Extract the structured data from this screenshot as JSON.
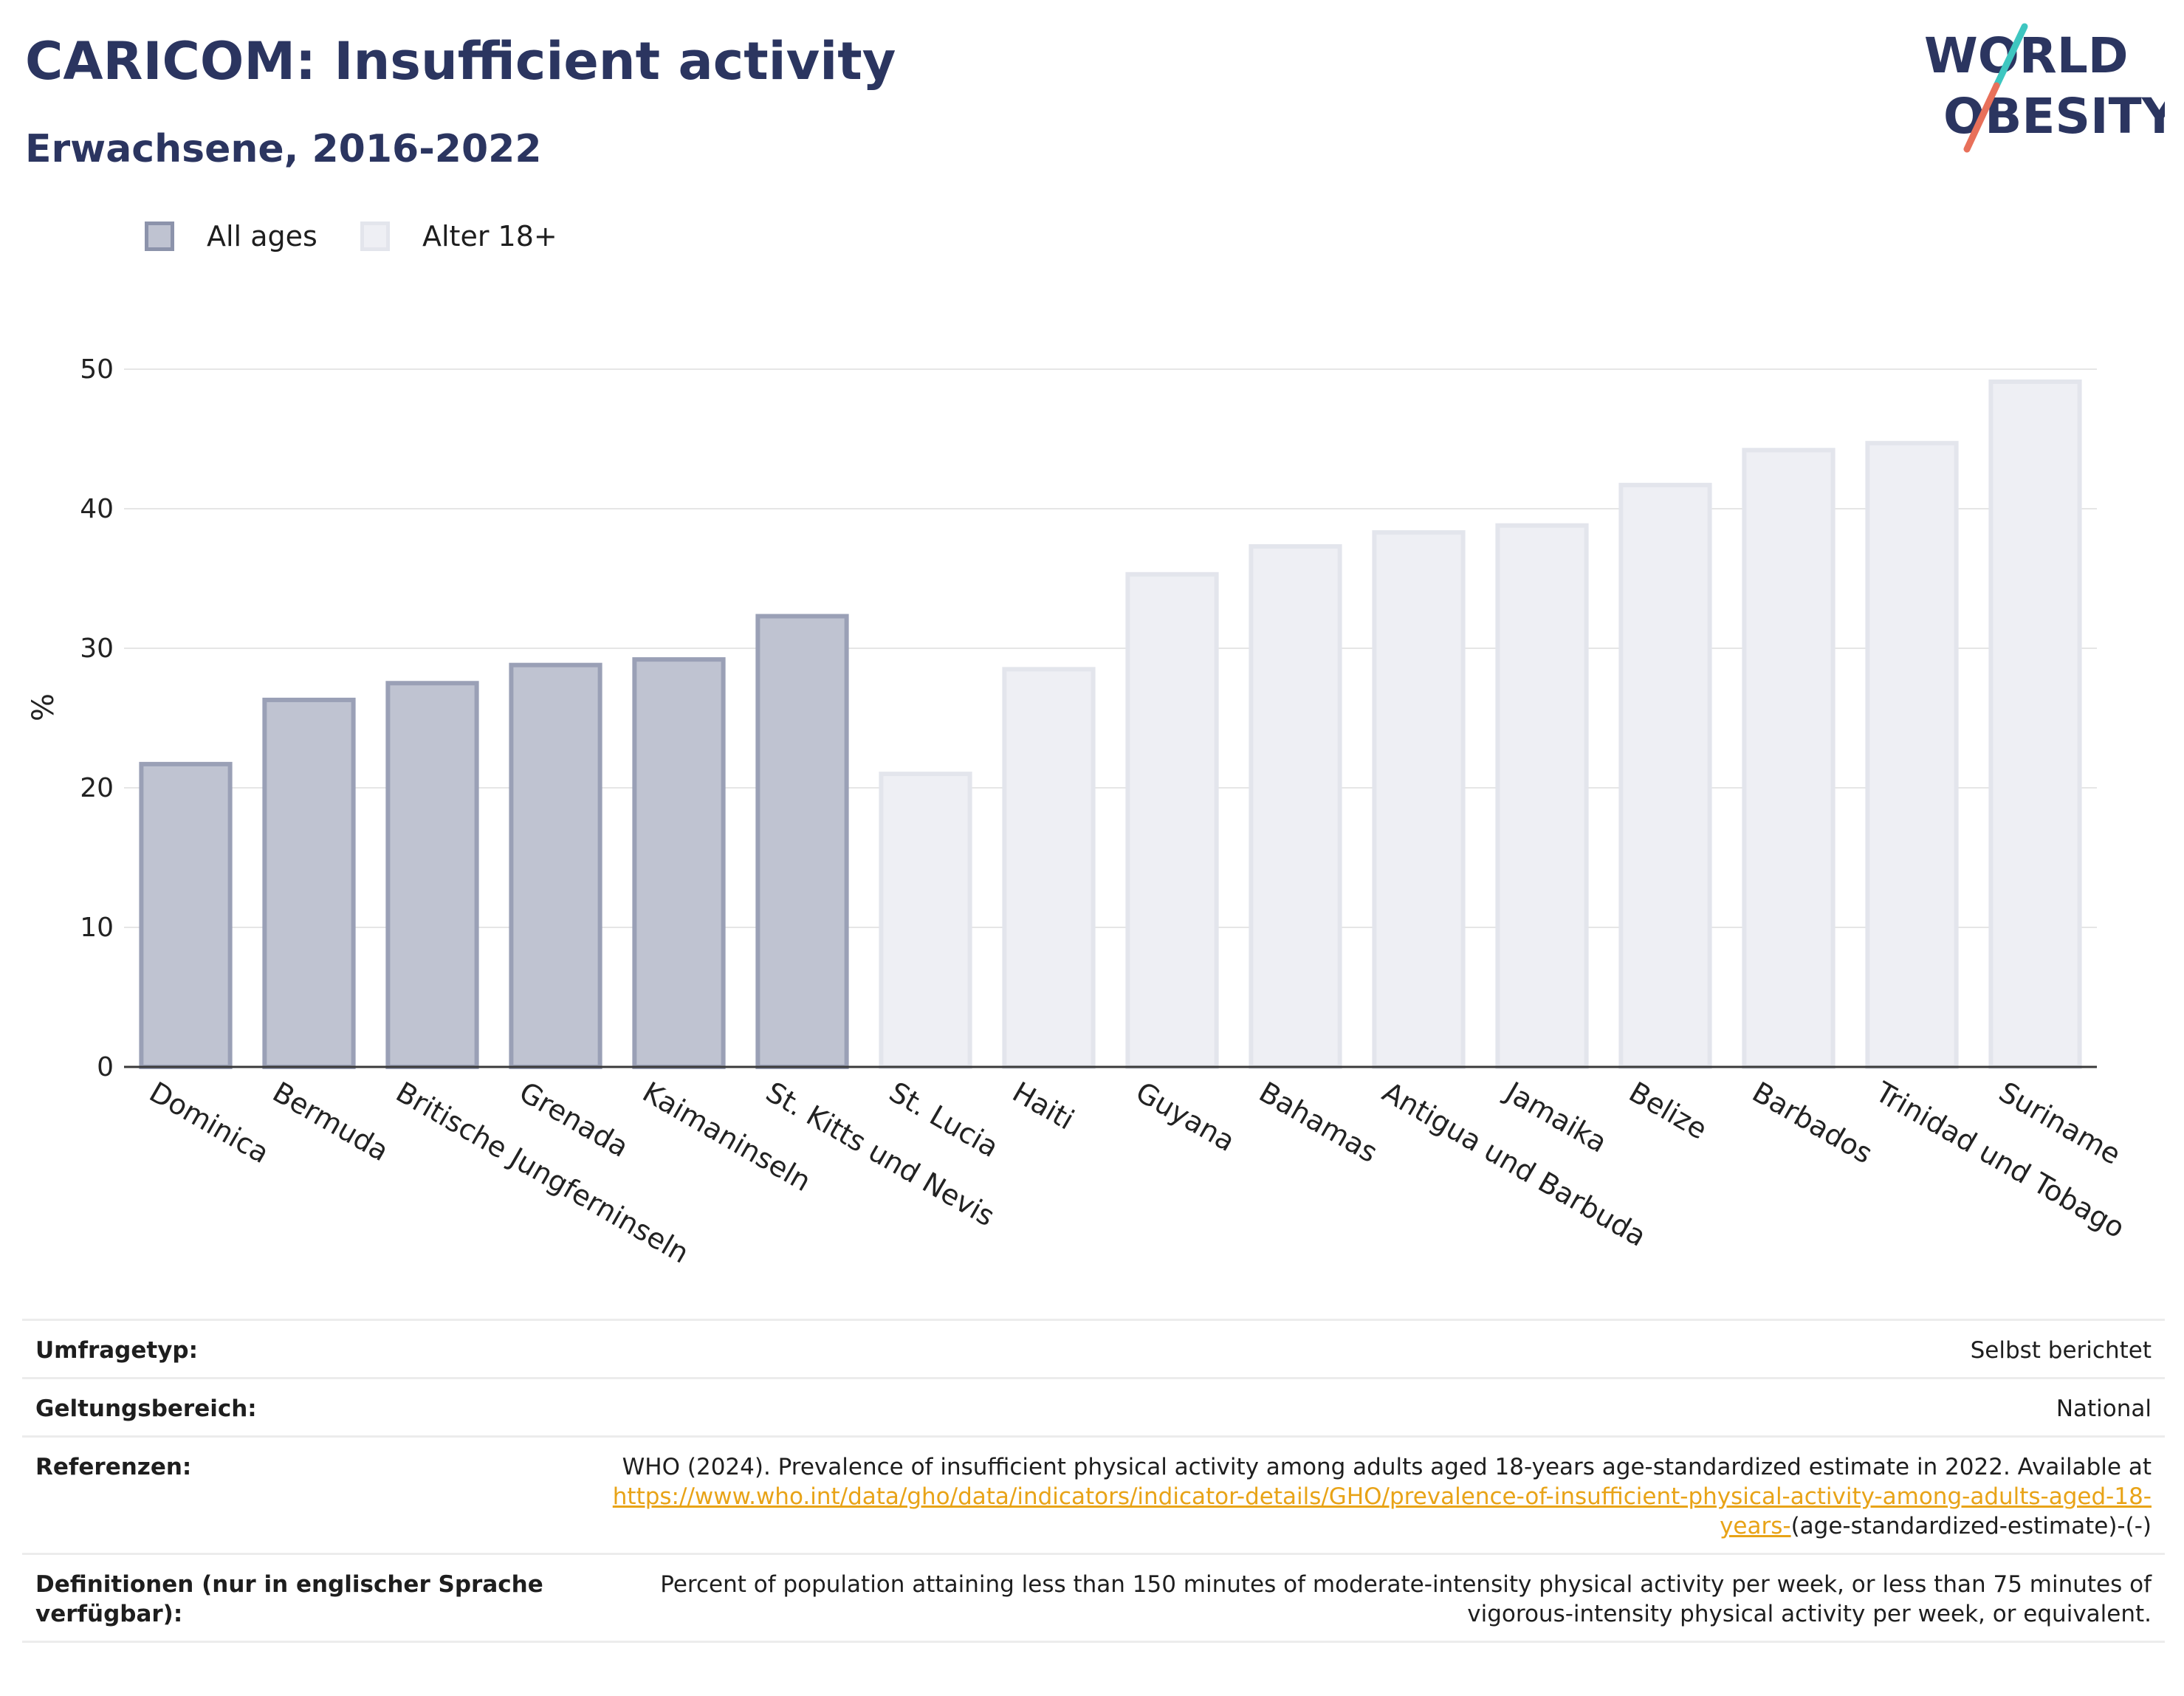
{
  "header": {
    "title": "CARICOM: Insufficient activity",
    "subtitle": "Erwachsene, 2016-2022"
  },
  "logo": {
    "line1": "WORLD",
    "line2": "OBESITY",
    "accent_colors": [
      "#3ec6c0",
      "#e8705a"
    ]
  },
  "legend": [
    {
      "label": "All ages",
      "color": "#bfc3d1",
      "border": "#8c93ab"
    },
    {
      "label": "Alter 18+",
      "color": "#eeeff4",
      "border": "#e3e5ec"
    }
  ],
  "chart_data": {
    "type": "bar",
    "ylabel": "%",
    "ylim": [
      0,
      50
    ],
    "yticks": [
      0,
      10,
      20,
      30,
      40,
      50
    ],
    "grid": true,
    "legend_position": "top-left",
    "categories": [
      "Dominica",
      "Bermuda",
      "Britische Jungferninseln",
      "Grenada",
      "Kaimaninseln",
      "St. Kitts und Nevis",
      "St. Lucia",
      "Haiti",
      "Guyana",
      "Bahamas",
      "Antigua und Barbuda",
      "Jamaika",
      "Belize",
      "Barbados",
      "Trinidad und Tobago",
      "Suriname"
    ],
    "values": [
      21.7,
      26.3,
      27.5,
      28.8,
      29.2,
      32.3,
      21.0,
      28.5,
      35.3,
      37.3,
      38.3,
      38.8,
      41.7,
      44.2,
      44.7,
      49.1
    ],
    "series_index": [
      0,
      0,
      0,
      0,
      0,
      0,
      1,
      1,
      1,
      1,
      1,
      1,
      1,
      1,
      1,
      1
    ],
    "series": [
      {
        "name": "All ages",
        "fill": "#bfc3d1",
        "stroke": "#9aa0b6"
      },
      {
        "name": "Alter 18+",
        "fill": "#eeeff4",
        "stroke": "#e3e5ec"
      }
    ]
  },
  "meta": {
    "survey_label": "Umfragetyp:",
    "survey_value": "Selbst berichtet",
    "scope_label": "Geltungsbereich:",
    "scope_value": "National",
    "ref_label": "Referenzen:",
    "ref_text": "WHO (2024). Prevalence of insufficient physical activity among adults aged 18-years age-standardized estimate in 2022. Available at",
    "ref_link": "https://www.who.int/data/gho/data/indicators/indicator-details/GHO/prevalence-of-insufficient-physical-activity-among-adults-aged-18-years-",
    "ref_suffix": "(age-standardized-estimate)-(-)",
    "def_label": "Definitionen (nur in englischer Sprache verfügbar):",
    "def_value": "Percent of population attaining less than 150 minutes of moderate-intensity physical activity per week, or less than 75 minutes of vigorous-intensity physical activity per week, or equivalent."
  }
}
